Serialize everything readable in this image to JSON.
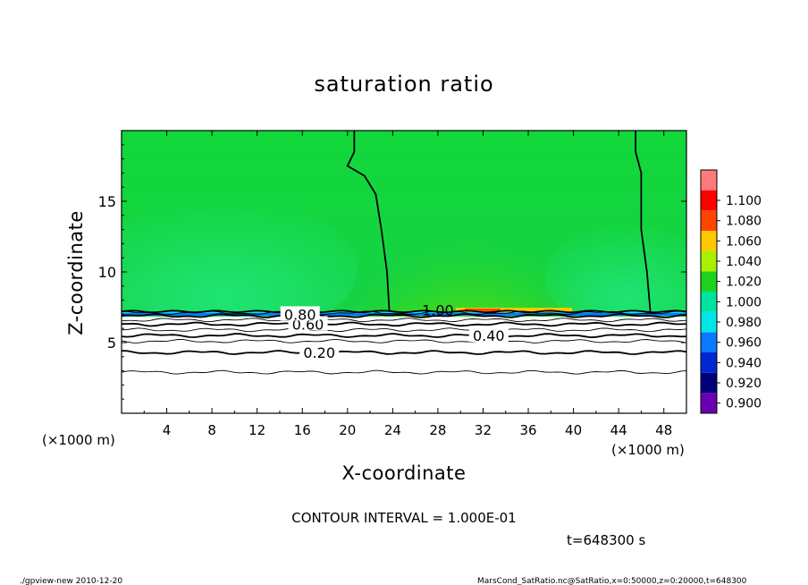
{
  "chart_data": {
    "type": "heatmap",
    "title": "saturation ratio",
    "xlabel": "X-coordinate",
    "ylabel": "Z-coordinate",
    "x_unit_left": "(×1000 m)",
    "x_unit_right": "(×1000 m)",
    "xlim": [
      0,
      50
    ],
    "ylim": [
      0,
      20
    ],
    "x_ticks": [
      4,
      8,
      12,
      16,
      20,
      24,
      28,
      32,
      36,
      40,
      44,
      48
    ],
    "y_ticks": [
      5,
      10,
      15
    ],
    "contour_interval_text": "CONTOUR INTERVAL = 1.000E-01",
    "time_text": "t=648300 s",
    "footer_left": "./gpview-new   2010-12-20",
    "footer_right": "MarsCond_SatRatio.nc@SatRatio,x=0:50000,z=0:20000,t=648300",
    "colorbar": {
      "levels": [
        0.9,
        0.92,
        0.94,
        0.96,
        0.98,
        1.0,
        1.02,
        1.04,
        1.06,
        1.08,
        1.1
      ],
      "labels": [
        "0.900",
        "0.920",
        "0.940",
        "0.960",
        "0.980",
        "1.000",
        "1.020",
        "1.040",
        "1.060",
        "1.080",
        "1.100"
      ],
      "colors": [
        "#6a00b4",
        "#00007a",
        "#0028d0",
        "#0a78ff",
        "#00e6e6",
        "#00e2a0",
        "#1ed21e",
        "#a8ef00",
        "#ffc800",
        "#ff4600",
        "#ff0000",
        "#ff7a7a"
      ]
    },
    "contour_labels": [
      {
        "text": "0.20",
        "x": 17.5,
        "y": 4.3
      },
      {
        "text": "0.40",
        "x": 32.5,
        "y": 5.5
      },
      {
        "text": "0.60",
        "x": 16.5,
        "y": 6.3
      },
      {
        "text": "0.80",
        "x": 15.8,
        "y": 7.0
      },
      {
        "text": "1.00",
        "x": 28.0,
        "y": 7.3
      }
    ],
    "contour_z_levels": [
      {
        "level": 0.1,
        "z": 2.9
      },
      {
        "level": 0.2,
        "z": 4.3
      },
      {
        "level": 0.3,
        "z": 5.1
      },
      {
        "level": 0.4,
        "z": 5.5
      },
      {
        "level": 0.5,
        "z": 5.9
      },
      {
        "level": 0.6,
        "z": 6.3
      },
      {
        "level": 0.7,
        "z": 6.6
      },
      {
        "level": 0.8,
        "z": 6.9
      },
      {
        "level": 0.9,
        "z": 7.1
      }
    ],
    "contour_one_left": [
      [
        20.6,
        20
      ],
      [
        20.6,
        18.5
      ],
      [
        20,
        17.5
      ],
      [
        21.5,
        16.8
      ],
      [
        22.5,
        15.5
      ],
      [
        23,
        13
      ],
      [
        23.5,
        10
      ],
      [
        23.7,
        7.2
      ]
    ],
    "contour_one_right": [
      [
        45.5,
        20
      ],
      [
        45.5,
        18.5
      ],
      [
        46,
        17
      ],
      [
        46,
        13
      ],
      [
        46.5,
        10
      ],
      [
        46.8,
        7.2
      ]
    ],
    "saturation_layer_top_z": 7.2
  }
}
